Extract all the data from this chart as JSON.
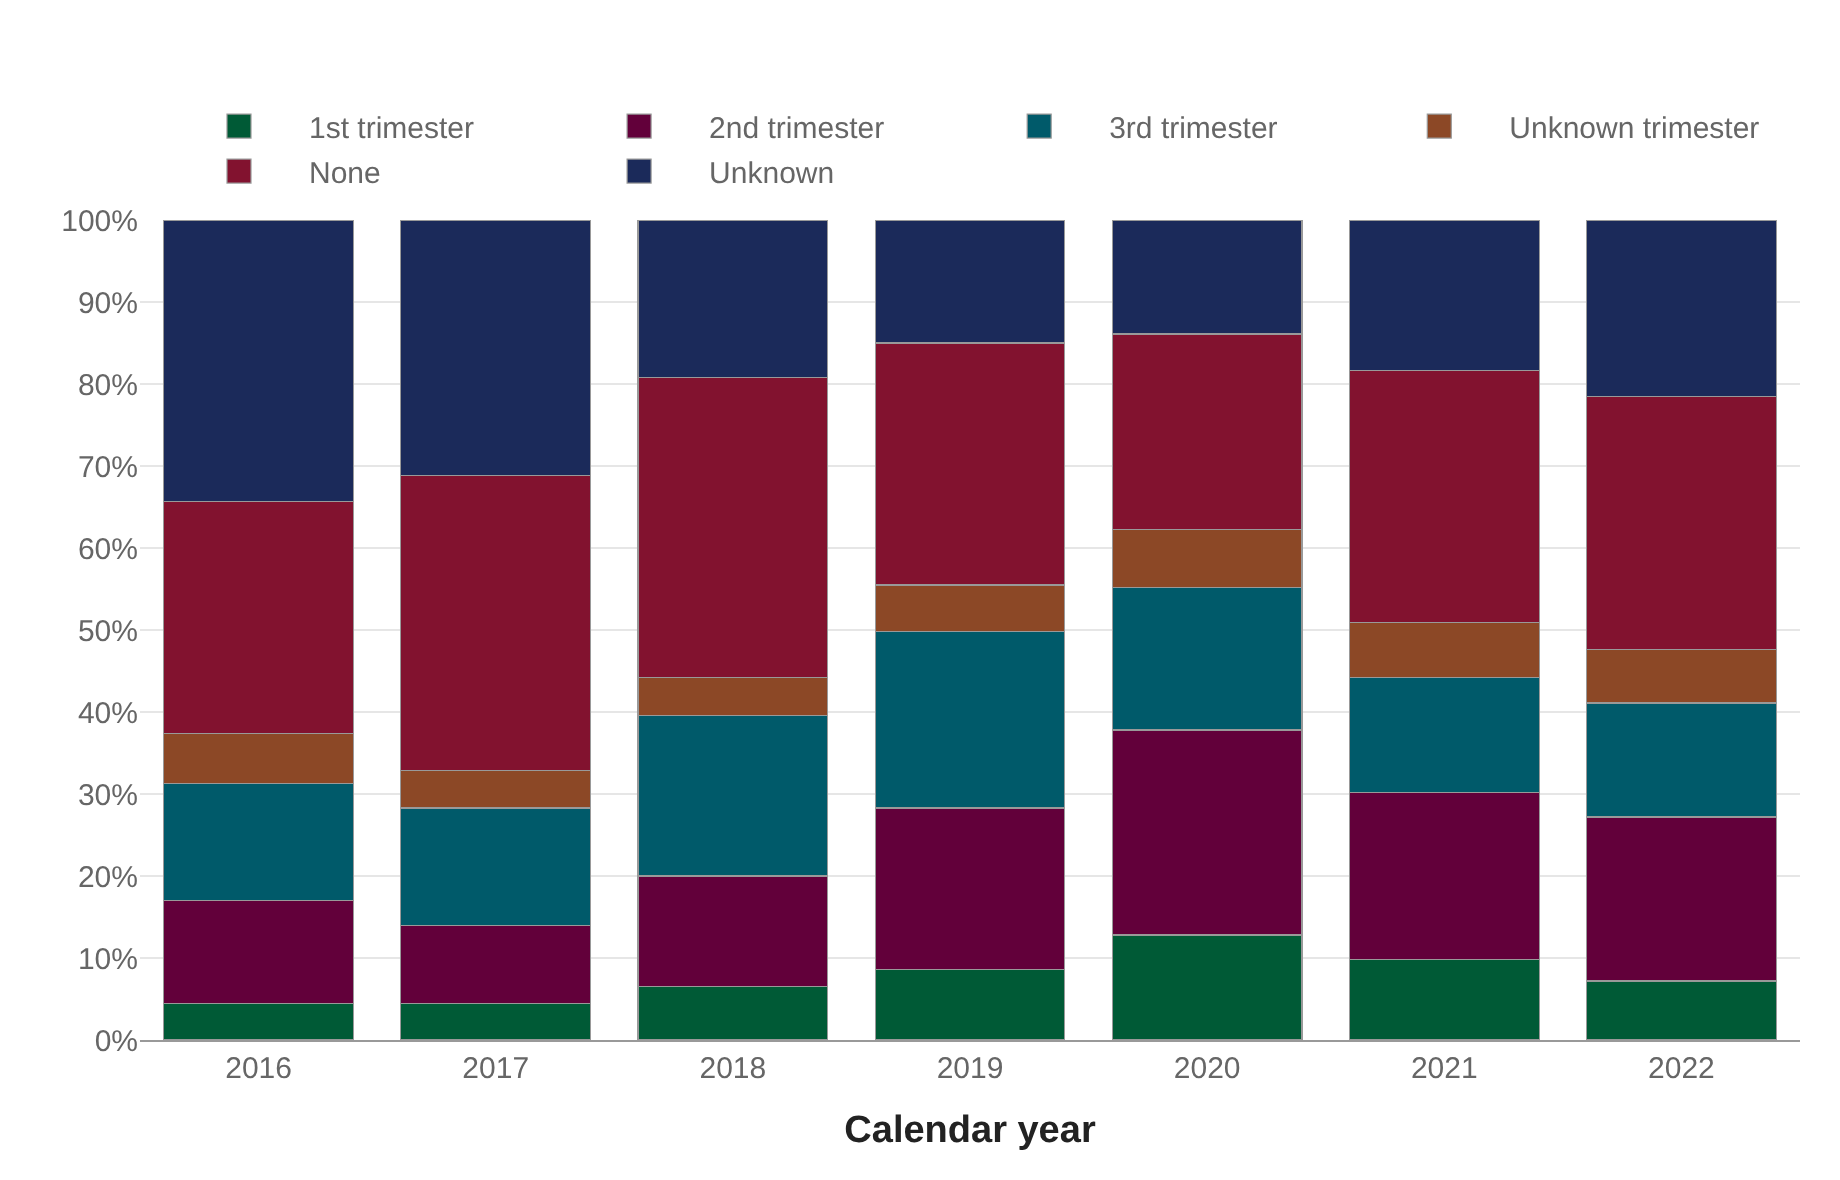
{
  "chart_data": {
    "type": "bar",
    "stacked": true,
    "xlabel": "Calendar year",
    "categories": [
      "2016",
      "2017",
      "2018",
      "2019",
      "2020",
      "2021",
      "2022"
    ],
    "series": [
      {
        "name": "1st trimester",
        "color": "#005a36",
        "values": [
          4.5,
          4.5,
          6.5,
          8.6,
          12.8,
          9.8,
          7.2
        ]
      },
      {
        "name": "2nd trimester",
        "color": "#62003a",
        "values": [
          12.5,
          9.5,
          13.5,
          19.7,
          25.0,
          20.4,
          20.0
        ]
      },
      {
        "name": "3rd trimester",
        "color": "#005a6a",
        "values": [
          14.3,
          14.3,
          19.6,
          21.5,
          17.4,
          14.0,
          13.9
        ]
      },
      {
        "name": "Unknown trimester",
        "color": "#8c4826",
        "values": [
          6.1,
          4.6,
          4.6,
          5.7,
          7.1,
          6.7,
          6.5
        ]
      },
      {
        "name": "None",
        "color": "#82122f",
        "values": [
          28.3,
          35.9,
          36.6,
          29.5,
          23.8,
          30.7,
          30.9
        ]
      },
      {
        "name": "Unknown",
        "color": "#1b2a5a",
        "values": [
          34.3,
          31.2,
          19.2,
          15.0,
          13.9,
          18.4,
          21.5
        ]
      }
    ],
    "ylim": [
      0,
      100
    ],
    "yticks": [
      {
        "value": 0,
        "label": "0%"
      },
      {
        "value": 10,
        "label": "10%"
      },
      {
        "value": 20,
        "label": "20%"
      },
      {
        "value": 30,
        "label": "30%"
      },
      {
        "value": 40,
        "label": "40%"
      },
      {
        "value": 50,
        "label": "50%"
      },
      {
        "value": 60,
        "label": "60%"
      },
      {
        "value": 70,
        "label": "70%"
      },
      {
        "value": 80,
        "label": "80%"
      },
      {
        "value": 90,
        "label": "90%"
      },
      {
        "value": 100,
        "label": "100%"
      }
    ],
    "grid": "y",
    "legend": "top"
  }
}
